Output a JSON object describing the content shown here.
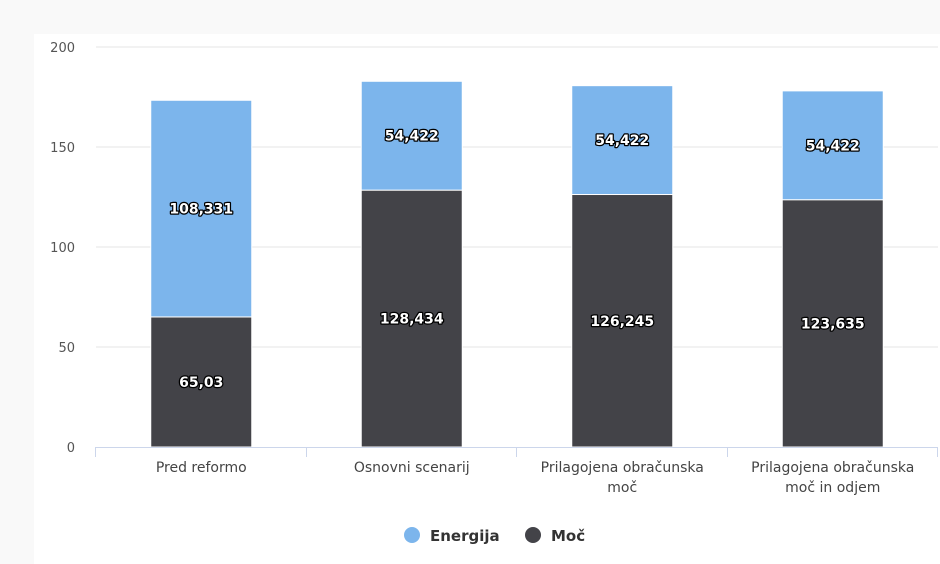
{
  "chart_data": {
    "type": "bar",
    "stacked": true,
    "categories": [
      [
        "Pred reformo"
      ],
      [
        "Osnovni scenarij"
      ],
      [
        "Prilagojena obračunska",
        "moč"
      ],
      [
        "Prilagojena obračunska",
        "moč in odjem"
      ]
    ],
    "series": [
      {
        "name": "Moč",
        "color": "#434348",
        "values": [
          65.03,
          128.434,
          126.245,
          123.635
        ],
        "labels": [
          "65,03",
          "128,434",
          "126,245",
          "123,635"
        ]
      },
      {
        "name": "Energija",
        "color": "#7cb5ec",
        "values": [
          108.331,
          54.422,
          54.422,
          54.422
        ],
        "labels": [
          "108,331",
          "54,422",
          "54,422",
          "54,422"
        ]
      }
    ],
    "legend": [
      {
        "name": "Energija",
        "color": "#7cb5ec"
      },
      {
        "name": "Moč",
        "color": "#434348"
      }
    ],
    "ylim": [
      0,
      200
    ],
    "yticks": [
      0,
      50,
      100,
      150,
      200
    ],
    "ytick_labels": [
      "0",
      "50",
      "100",
      "150",
      "200"
    ],
    "grid": true,
    "legend_position": "bottom-center"
  }
}
